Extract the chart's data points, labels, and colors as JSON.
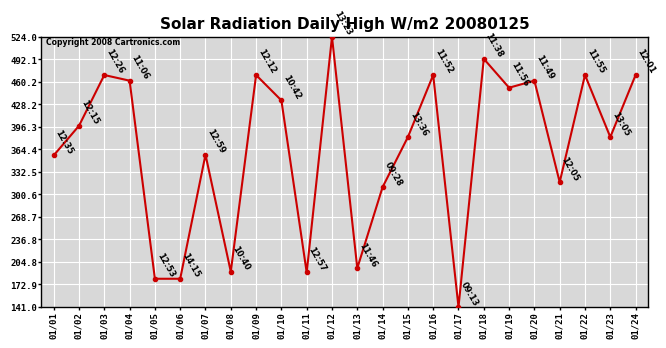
{
  "title": "Solar Radiation Daily High W/m2 20080125",
  "copyright": "Copyright 2008 Cartronics.com",
  "x_labels": [
    "01/01",
    "01/02",
    "01/03",
    "01/04",
    "01/05",
    "01/06",
    "01/07",
    "01/08",
    "01/09",
    "01/10",
    "01/11",
    "01/12",
    "01/13",
    "01/14",
    "01/15",
    "01/16",
    "01/17",
    "01/18",
    "01/19",
    "01/20",
    "01/21",
    "01/22",
    "01/23",
    "01/24"
  ],
  "y_values": [
    356.0,
    398.0,
    470.0,
    462.0,
    181.0,
    181.0,
    357.0,
    191.0,
    470.0,
    434.0,
    190.0,
    524.0,
    196.0,
    311.0,
    382.0,
    470.0,
    141.0,
    493.0,
    452.0,
    462.0,
    318.0,
    470.0,
    382.0,
    470.0
  ],
  "point_labels": [
    "12:35",
    "12:15",
    "12:26",
    "11:06",
    "12:53",
    "14:15",
    "12:59",
    "10:40",
    "12:12",
    "10:42",
    "12:57",
    "13:23",
    "11:46",
    "09:28",
    "13:36",
    "11:52",
    "09:13",
    "11:38",
    "11:56",
    "11:49",
    "12:05",
    "11:55",
    "13:05",
    "12:01"
  ],
  "y_min": 141.0,
  "y_max": 524.0,
  "y_ticks": [
    141.0,
    172.9,
    204.8,
    236.8,
    268.7,
    300.6,
    332.5,
    364.4,
    396.3,
    428.2,
    460.2,
    492.1,
    524.0
  ],
  "line_color": "#cc0000",
  "marker_color": "#cc0000",
  "bg_color": "#ffffff",
  "plot_bg_color": "#d8d8d8",
  "grid_color": "#ffffff",
  "title_fontsize": 11,
  "tick_fontsize": 6.5,
  "point_label_fontsize": 6.0
}
